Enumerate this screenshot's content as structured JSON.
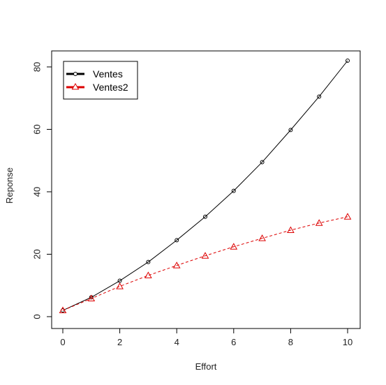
{
  "chart_data": {
    "type": "line",
    "title": "",
    "xlabel": "Effort",
    "ylabel": "Reponse",
    "x": [
      0,
      1,
      2,
      3,
      4,
      5,
      6,
      7,
      8,
      9,
      10
    ],
    "xlim": [
      0,
      10
    ],
    "ylim": [
      0,
      82
    ],
    "xticks": [
      0,
      2,
      4,
      6,
      8,
      10
    ],
    "yticks": [
      0,
      20,
      40,
      60,
      80
    ],
    "grid": false,
    "legend_position": "top-left",
    "series": [
      {
        "name": "Ventes",
        "values": [
          2,
          6.2,
          11.5,
          17.5,
          24.5,
          32,
          40.3,
          49.5,
          59.8,
          70.5,
          82
        ],
        "color": "#000000",
        "line_style": "solid",
        "marker": "circle"
      },
      {
        "name": "Ventes2",
        "values": [
          2,
          5.8,
          9.7,
          13.2,
          16.4,
          19.5,
          22.4,
          25.1,
          27.7,
          30,
          32
        ],
        "color": "#dd0000",
        "line_style": "dashed",
        "marker": "triangle"
      }
    ]
  }
}
